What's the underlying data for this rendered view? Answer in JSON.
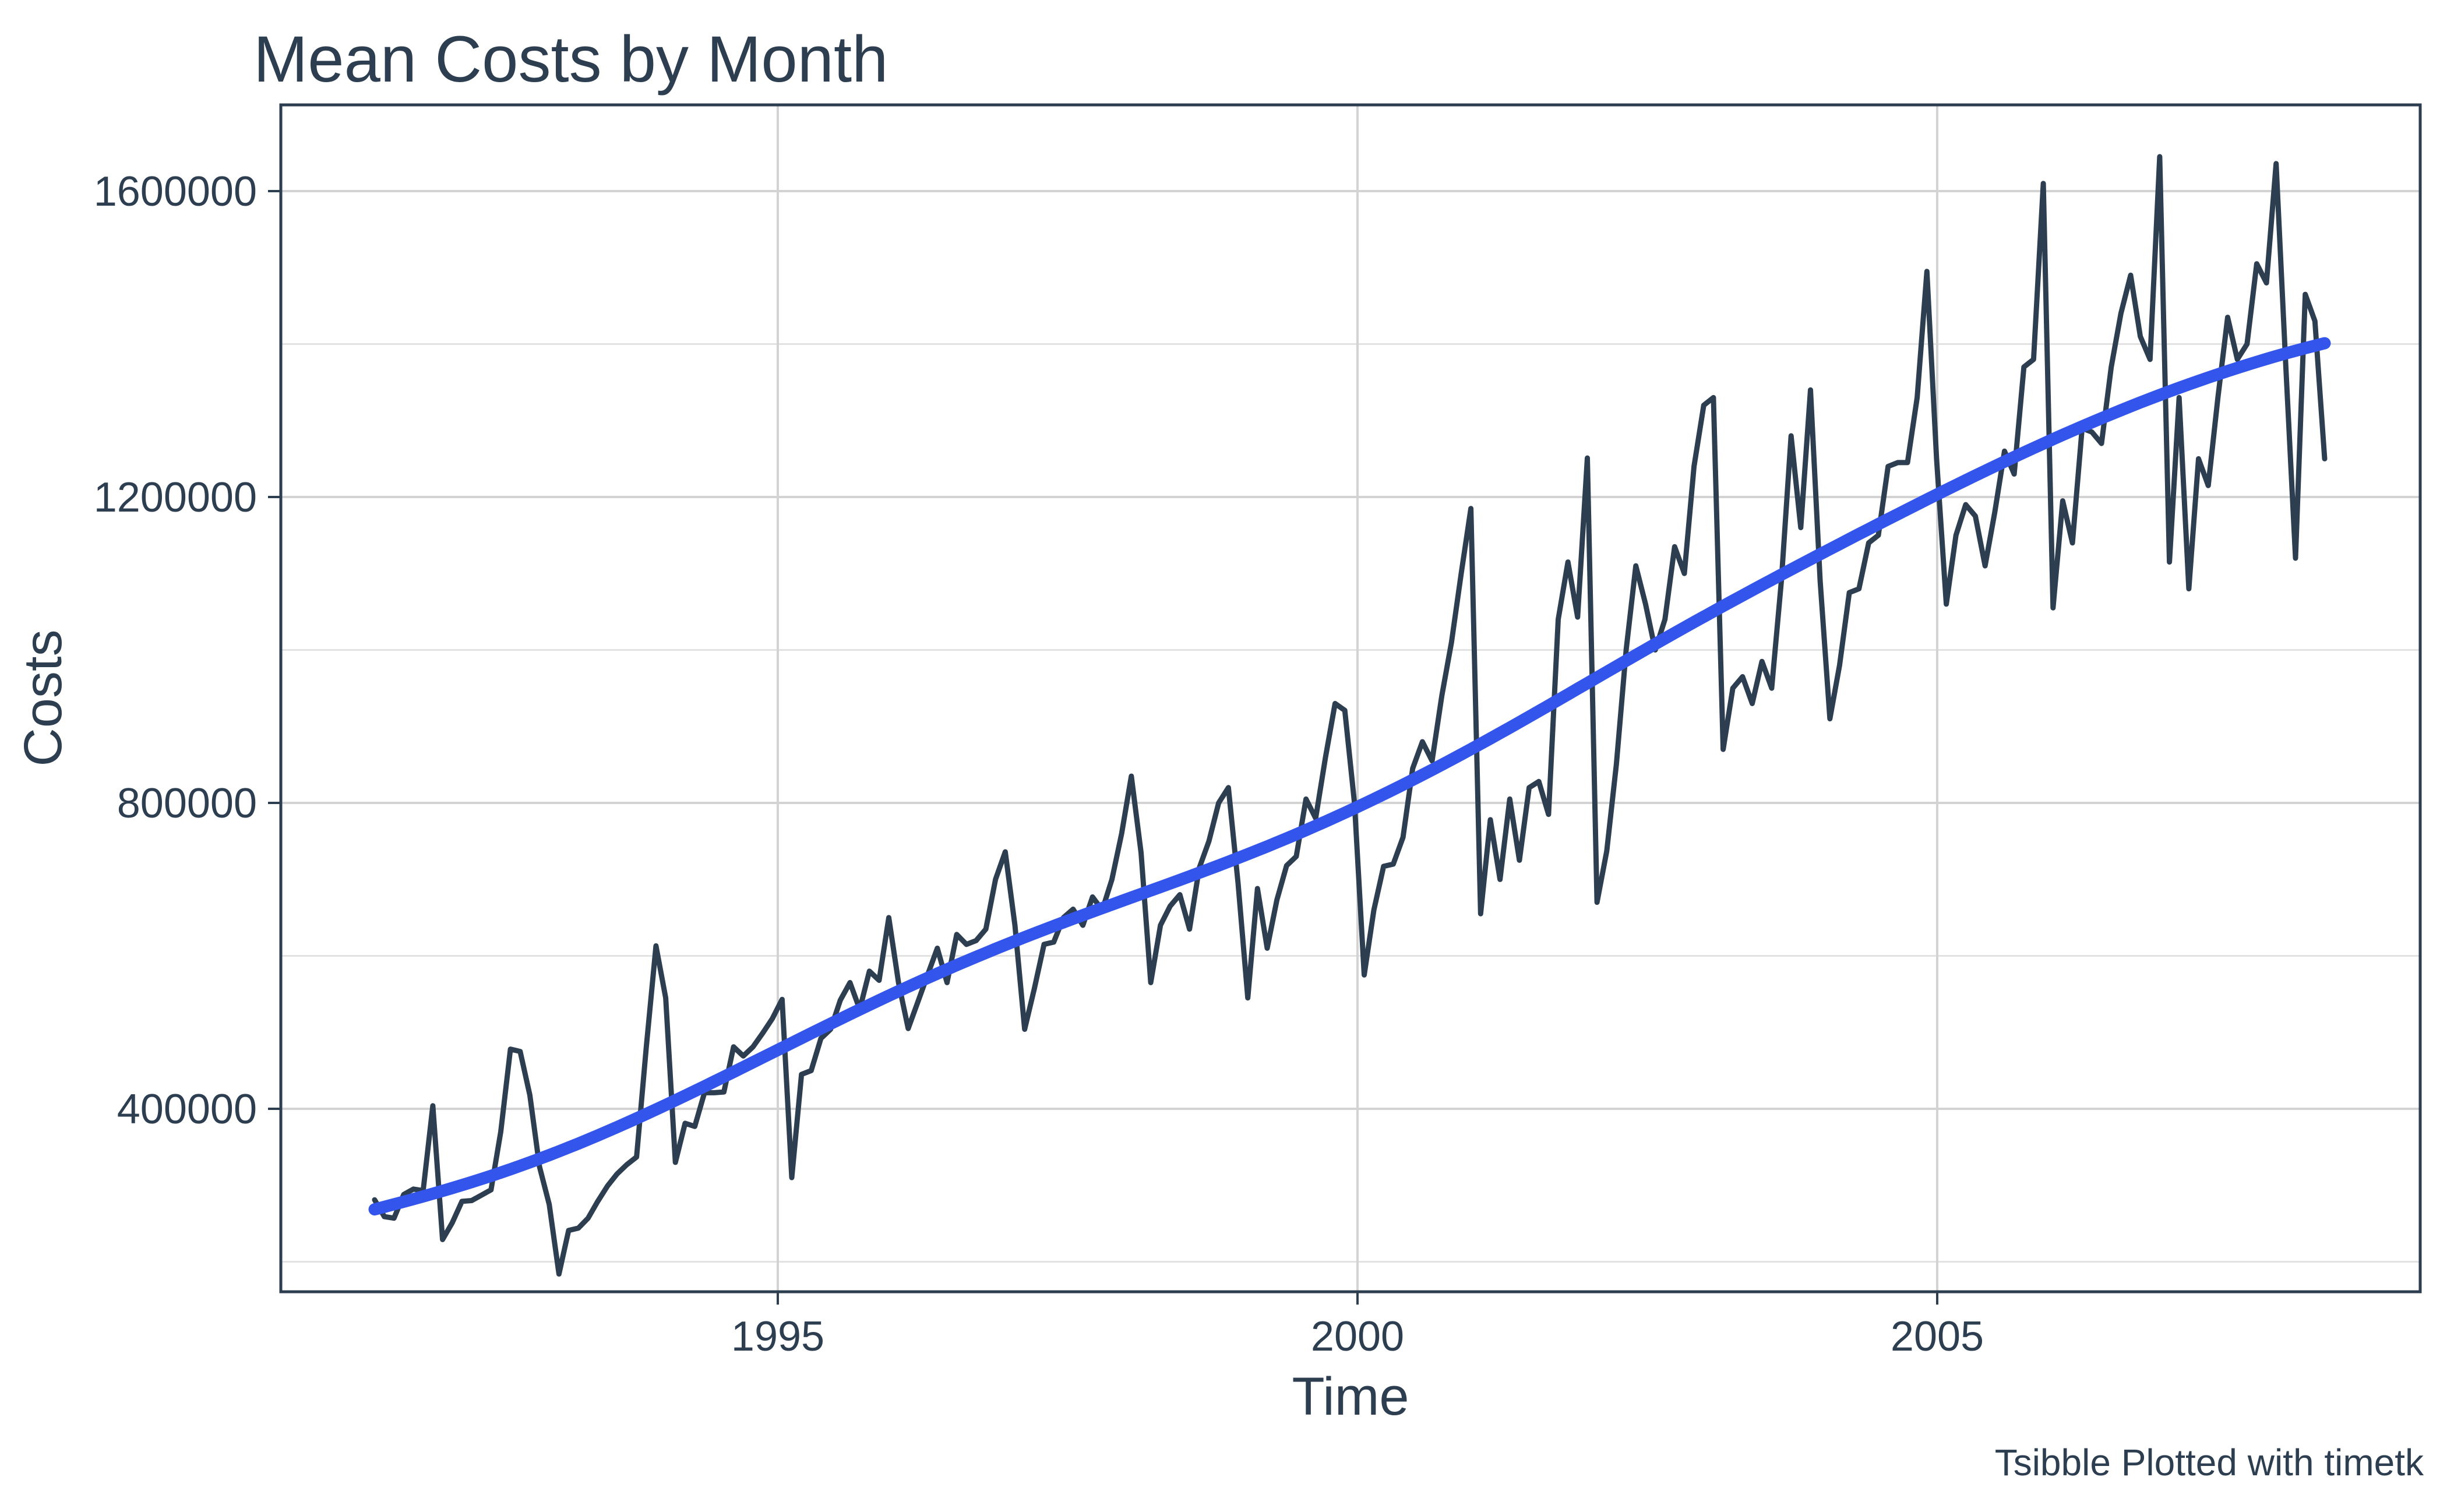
{
  "chart_data": {
    "type": "line",
    "title": "Mean Costs by Month",
    "xlabel": "Time",
    "ylabel": "Costs",
    "caption": "Tsibble Plotted with timetk",
    "x_tick_labels": [
      "1995",
      "2000",
      "2005"
    ],
    "x_tick_values": [
      1995,
      2000,
      2005
    ],
    "y_tick_labels": [
      "400000",
      "800000",
      "1200000",
      "1600000"
    ],
    "y_tick_values": [
      400000,
      800000,
      1200000,
      1600000
    ],
    "y_minor_values": [
      200000,
      600000,
      1000000,
      1400000
    ],
    "ylim": [
      160000,
      1710000
    ],
    "xlim_time": [
      1990.72,
      2009.06
    ],
    "grid": "horizontal-major-minor, vertical-major",
    "legend_position": "none",
    "start": "1991-07",
    "frequency": "monthly",
    "series": [
      {
        "name": "costs",
        "color": "#2c3e50",
        "values": [
          281000,
          259000,
          257000,
          288000,
          295000,
          293000,
          404000,
          229000,
          251000,
          279000,
          280000,
          287000,
          294000,
          370000,
          478000,
          475000,
          418000,
          324000,
          275000,
          184000,
          241000,
          244000,
          257000,
          279000,
          299000,
          315000,
          327000,
          337000,
          480000,
          613000,
          545000,
          330000,
          381000,
          377000,
          421000,
          421000,
          422000,
          481000,
          469000,
          481000,
          499000,
          518000,
          543000,
          310000,
          445000,
          450000,
          492000,
          504000,
          542000,
          565000,
          530000,
          580000,
          568000,
          650000,
          565000,
          505000,
          540000,
          575000,
          610000,
          565000,
          628000,
          615000,
          620000,
          635000,
          700000,
          736000,
          640000,
          504000,
          557000,
          615000,
          618000,
          650000,
          661000,
          640000,
          677000,
          660000,
          700000,
          760000,
          835000,
          735000,
          565000,
          640000,
          665000,
          680000,
          635000,
          715000,
          750000,
          800000,
          820000,
          695000,
          545000,
          688000,
          610000,
          673000,
          718000,
          730000,
          805000,
          780000,
          859000,
          930000,
          921000,
          800000,
          575000,
          660000,
          717000,
          720000,
          755000,
          845000,
          880000,
          855000,
          940000,
          1010000,
          1100000,
          1185000,
          655000,
          778000,
          700000,
          805000,
          725000,
          820000,
          828000,
          785000,
          1040000,
          1115000,
          1043000,
          1251000,
          670000,
          737000,
          851000,
          1000000,
          1110000,
          1060000,
          1000000,
          1040000,
          1135000,
          1100000,
          1240000,
          1320000,
          1330000,
          870000,
          950000,
          965000,
          930000,
          985000,
          950000,
          1090000,
          1280000,
          1160000,
          1340000,
          1090000,
          910000,
          980000,
          1075000,
          1080000,
          1140000,
          1150000,
          1240000,
          1245000,
          1245000,
          1330000,
          1495000,
          1250000,
          1060000,
          1150000,
          1190000,
          1175000,
          1110000,
          1180000,
          1260000,
          1230000,
          1370000,
          1380000,
          1610000,
          1055000,
          1195000,
          1140000,
          1290000,
          1285000,
          1270000,
          1370000,
          1440000,
          1490000,
          1410000,
          1380000,
          1645000,
          1115000,
          1330000,
          1080000,
          1250000,
          1215000,
          1330000,
          1435000,
          1380000,
          1400000,
          1505000,
          1480000,
          1636000,
          1370000,
          1120000,
          1465000,
          1430000,
          1250000
        ]
      },
      {
        "name": "smoothed trend (loess)",
        "color": "#3355ec",
        "derived": "loess smooth of costs series"
      }
    ],
    "colors": {
      "line": "#2c3e50",
      "smooth": "#3355ec",
      "grid_major": "#d3d3d3",
      "grid_minor": "#e2e2e2",
      "panel_border": "#2c3e50",
      "text": "#2c3e50",
      "background": "#ffffff"
    }
  }
}
